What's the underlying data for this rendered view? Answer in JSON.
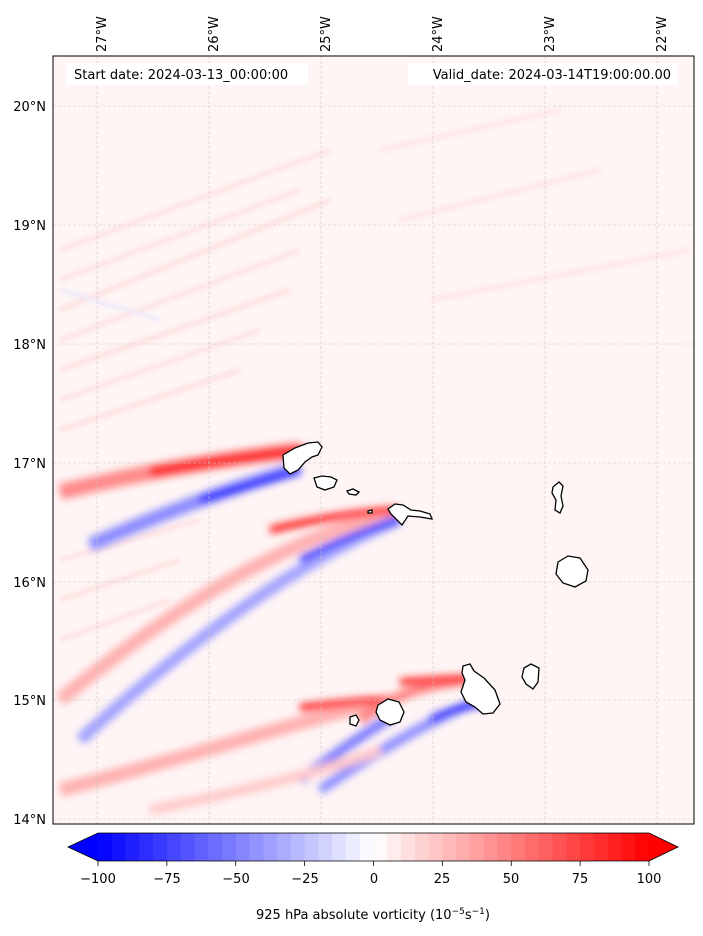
{
  "map": {
    "start_label": "Start date: 2024-03-13_00:00:00",
    "valid_label": "Valid_date: 2024-03-14T19:00:00.00",
    "lon_labels": [
      "27°W",
      "26°W",
      "25°W",
      "24°W",
      "23°W",
      "22°W"
    ],
    "lon_values": [
      -27,
      -26,
      -25,
      -24,
      -23,
      -22
    ],
    "lat_labels": [
      "20°N",
      "19°N",
      "18°N",
      "17°N",
      "16°N",
      "15°N",
      "14°N"
    ],
    "lat_values": [
      20,
      19,
      18,
      17,
      16,
      15,
      14
    ],
    "extent": {
      "lon": [
        -27.35,
        -21.95
      ],
      "lat": [
        13.95,
        20.45
      ]
    }
  },
  "colorbar": {
    "label_prefix": "925 hPa absolute vorticity (10",
    "label_exp1": "−5",
    "label_mid": "s",
    "label_exp2": "−1",
    "label_suffix": ")",
    "ticks": [
      "−100",
      "−75",
      "−50",
      "−25",
      "0",
      "25",
      "50",
      "75",
      "100"
    ],
    "tick_values": [
      -100,
      -75,
      -50,
      -25,
      0,
      25,
      50,
      75,
      100
    ],
    "range": [
      -100,
      100
    ],
    "colormap": "bwr",
    "extend": "both"
  },
  "islands": [
    {
      "name": "Santo Antão",
      "lon": -25.2,
      "lat": 17.05
    },
    {
      "name": "São Vicente",
      "lon": -24.97,
      "lat": 16.84
    },
    {
      "name": "Santa Luzia",
      "lon": -24.75,
      "lat": 16.76
    },
    {
      "name": "São Nicolau",
      "lon": -24.3,
      "lat": 16.6
    },
    {
      "name": "Sal",
      "lon": -22.93,
      "lat": 16.73
    },
    {
      "name": "Boa Vista",
      "lon": -22.82,
      "lat": 16.1
    },
    {
      "name": "Maio",
      "lon": -23.18,
      "lat": 15.2
    },
    {
      "name": "Santiago",
      "lon": -23.65,
      "lat": 15.1
    },
    {
      "name": "Fogo",
      "lon": -24.4,
      "lat": 14.92
    },
    {
      "name": "Brava",
      "lon": -24.72,
      "lat": 14.85
    }
  ]
}
